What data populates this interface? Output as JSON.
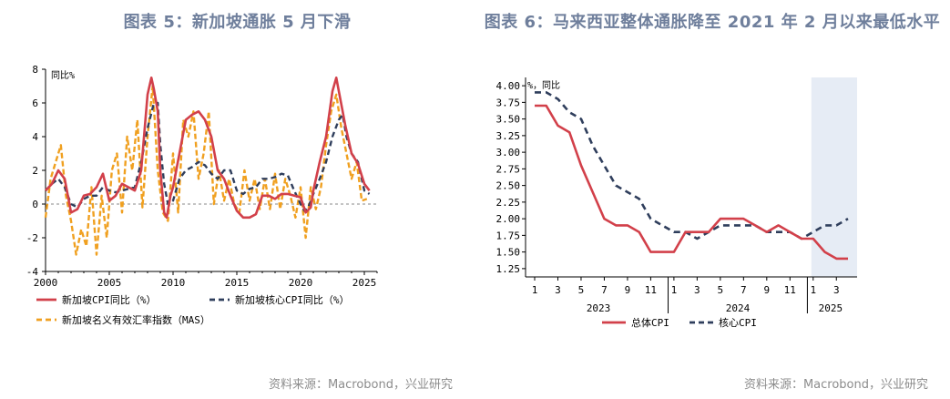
{
  "left": {
    "title": "图表 5：新加坡通胀 5 月下滑",
    "source": "资料来源：Macrobond，兴业研究"
  },
  "right": {
    "title": "图表 6：马来西亚整体通胀降至 2021 年 2 月以来最低水平",
    "source": "资料来源：Macrobond，兴业研究"
  },
  "colors": {
    "red": "#d2404a",
    "navy": "#2f3e5c",
    "orange": "#f0a020",
    "shade": "#e6ecf5"
  },
  "chart_data": [
    {
      "type": "line",
      "unit_label": "同比%",
      "xlim": [
        2000,
        2026
      ],
      "ylim": [
        -4,
        8
      ],
      "x_ticks": [
        "2000",
        "2005",
        "2010",
        "2015",
        "2020",
        "2025"
      ],
      "y_ticks": [
        "8",
        "6",
        "4",
        "2",
        "0",
        "-2",
        "-4"
      ],
      "zero_line": true,
      "legend_placement": "bottom",
      "series": [
        {
          "name": "新加坡CPI同比（%）",
          "color": "#d2404a",
          "style": "solid",
          "x": [
            2000.0,
            2000.5,
            2001.0,
            2001.5,
            2002.0,
            2002.5,
            2003.0,
            2003.5,
            2004.0,
            2004.5,
            2005.0,
            2005.5,
            2006.0,
            2006.5,
            2007.0,
            2007.5,
            2008.0,
            2008.3,
            2008.5,
            2008.8,
            2009.0,
            2009.3,
            2009.5,
            2009.8,
            2010.0,
            2010.5,
            2011.0,
            2011.5,
            2012.0,
            2012.5,
            2013.0,
            2013.5,
            2014.0,
            2014.5,
            2015.0,
            2015.5,
            2016.0,
            2016.5,
            2017.0,
            2017.5,
            2018.0,
            2018.5,
            2019.0,
            2019.5,
            2020.0,
            2020.4,
            2020.8,
            2021.0,
            2021.5,
            2022.0,
            2022.5,
            2022.8,
            2023.0,
            2023.5,
            2024.0,
            2024.5,
            2025.0,
            2025.4
          ],
          "y": [
            0.8,
            1.2,
            2.0,
            1.5,
            -0.5,
            -0.3,
            0.5,
            0.6,
            1.0,
            1.8,
            0.2,
            0.5,
            1.2,
            1.0,
            0.8,
            2.0,
            6.5,
            7.5,
            6.8,
            5.5,
            2.0,
            -0.5,
            -0.8,
            0.5,
            1.0,
            3.0,
            5.0,
            5.3,
            5.5,
            5.0,
            4.0,
            2.0,
            1.5,
            0.5,
            -0.4,
            -0.8,
            -0.8,
            -0.6,
            0.5,
            0.5,
            0.3,
            0.6,
            0.6,
            0.5,
            0.4,
            -0.5,
            -0.2,
            0.8,
            2.5,
            4.0,
            6.7,
            7.5,
            6.7,
            4.7,
            3.0,
            2.4,
            1.2,
            0.8
          ]
        },
        {
          "name": "新加坡核心CPI同比（%）",
          "color": "#2f3e5c",
          "style": "dashed",
          "x": [
            2000.0,
            2000.5,
            2001.0,
            2001.5,
            2002.0,
            2002.5,
            2003.0,
            2003.5,
            2004.0,
            2004.5,
            2005.0,
            2005.5,
            2006.0,
            2006.5,
            2007.0,
            2007.5,
            2008.0,
            2008.5,
            2008.8,
            2009.0,
            2009.3,
            2009.6,
            2010.0,
            2010.5,
            2011.0,
            2011.5,
            2012.0,
            2012.5,
            2013.0,
            2013.5,
            2014.0,
            2014.5,
            2015.0,
            2015.5,
            2016.0,
            2016.5,
            2017.0,
            2017.5,
            2018.0,
            2018.5,
            2019.0,
            2019.5,
            2020.0,
            2020.3,
            2020.6,
            2021.0,
            2021.5,
            2022.0,
            2022.5,
            2023.0,
            2023.3,
            2023.6,
            2024.0,
            2024.5,
            2025.0,
            2025.4
          ],
          "y": [
            0.8,
            1.2,
            1.5,
            1.0,
            0.0,
            -0.2,
            0.3,
            0.5,
            0.5,
            1.0,
            0.8,
            0.7,
            0.8,
            0.9,
            1.0,
            2.5,
            4.5,
            6.0,
            6.0,
            3.5,
            1.2,
            0.0,
            0.2,
            1.5,
            2.0,
            2.2,
            2.5,
            2.3,
            1.8,
            1.5,
            2.0,
            2.0,
            0.8,
            0.6,
            0.9,
            1.0,
            1.5,
            1.5,
            1.6,
            1.8,
            1.7,
            0.8,
            0.0,
            -0.4,
            -0.2,
            0.6,
            1.5,
            2.5,
            4.0,
            5.0,
            5.3,
            4.0,
            3.0,
            2.5,
            0.8,
            0.6
          ]
        },
        {
          "name": "新加坡名义有效汇率指数（MAS）",
          "color": "#f0a020",
          "style": "dashed",
          "x": [
            2000.0,
            2000.4,
            2000.8,
            2001.2,
            2001.6,
            2002.0,
            2002.4,
            2002.8,
            2003.2,
            2003.6,
            2004.0,
            2004.4,
            2004.8,
            2005.2,
            2005.6,
            2006.0,
            2006.4,
            2006.8,
            2007.2,
            2007.6,
            2008.0,
            2008.4,
            2008.8,
            2009.2,
            2009.6,
            2010.0,
            2010.4,
            2010.8,
            2011.2,
            2011.6,
            2012.0,
            2012.4,
            2012.8,
            2013.2,
            2013.6,
            2014.0,
            2014.4,
            2014.8,
            2015.2,
            2015.6,
            2016.0,
            2016.4,
            2016.8,
            2017.2,
            2017.6,
            2018.0,
            2018.4,
            2018.8,
            2019.2,
            2019.6,
            2020.0,
            2020.4,
            2020.8,
            2021.2,
            2021.6,
            2022.0,
            2022.4,
            2022.8,
            2023.2,
            2023.6,
            2024.0,
            2024.4,
            2024.8,
            2025.2
          ],
          "y": [
            -0.8,
            1.5,
            2.5,
            3.5,
            0.5,
            -1.0,
            -3.0,
            -1.5,
            -2.5,
            1.0,
            -3.0,
            0.5,
            -2.0,
            2.0,
            3.0,
            -0.5,
            4.0,
            2.0,
            5.0,
            -0.2,
            4.0,
            7.0,
            2.0,
            -0.5,
            -1.0,
            3.0,
            -0.5,
            5.0,
            4.0,
            5.5,
            1.5,
            3.0,
            5.5,
            0.0,
            2.0,
            0.2,
            1.5,
            0.0,
            -0.5,
            2.0,
            0.2,
            1.5,
            -0.3,
            1.5,
            -0.3,
            1.8,
            -0.3,
            1.5,
            0.5,
            -0.8,
            1.0,
            -2.0,
            1.0,
            -0.3,
            1.0,
            3.5,
            5.5,
            6.5,
            4.5,
            3.0,
            1.5,
            2.5,
            0.2,
            0.3
          ]
        }
      ]
    },
    {
      "type": "line",
      "unit_label": "%，同比",
      "ylim": [
        1.125,
        4.125
      ],
      "y_ticks": [
        "4.00",
        "3.75",
        "3.50",
        "3.25",
        "3.00",
        "2.75",
        "2.50",
        "2.25",
        "2.00",
        "1.75",
        "1.50",
        "1.25"
      ],
      "x_ticks": [
        "1",
        "3",
        "5",
        "7",
        "9",
        "11",
        "1",
        "3",
        "5",
        "7",
        "9",
        "11",
        "1",
        "3"
      ],
      "year_labels": [
        "2023",
        "2024",
        "2025"
      ],
      "shaded_region": "2025",
      "legend_placement": "bottom",
      "series": [
        {
          "name": "总体CPI",
          "color": "#d2404a",
          "style": "solid",
          "x": [
            "2023-01",
            "2023-02",
            "2023-03",
            "2023-04",
            "2023-05",
            "2023-06",
            "2023-07",
            "2023-08",
            "2023-09",
            "2023-10",
            "2023-11",
            "2023-12",
            "2024-01",
            "2024-02",
            "2024-03",
            "2024-04",
            "2024-05",
            "2024-06",
            "2024-07",
            "2024-08",
            "2024-09",
            "2024-10",
            "2024-11",
            "2024-12",
            "2025-01",
            "2025-02",
            "2025-03",
            "2025-04"
          ],
          "y": [
            3.7,
            3.7,
            3.4,
            3.3,
            2.8,
            2.4,
            2.0,
            1.9,
            1.9,
            1.8,
            1.5,
            1.5,
            1.5,
            1.8,
            1.8,
            1.8,
            2.0,
            2.0,
            2.0,
            1.9,
            1.8,
            1.9,
            1.8,
            1.7,
            1.7,
            1.5,
            1.4,
            1.4
          ]
        },
        {
          "name": "核心CPI",
          "color": "#2f3e5c",
          "style": "dashed",
          "x": [
            "2023-01",
            "2023-02",
            "2023-03",
            "2023-04",
            "2023-05",
            "2023-06",
            "2023-07",
            "2023-08",
            "2023-09",
            "2023-10",
            "2023-11",
            "2023-12",
            "2024-01",
            "2024-02",
            "2024-03",
            "2024-04",
            "2024-05",
            "2024-06",
            "2024-07",
            "2024-08",
            "2024-09",
            "2024-10",
            "2024-11",
            "2024-12",
            "2025-01",
            "2025-02",
            "2025-03",
            "2025-04"
          ],
          "y": [
            3.9,
            3.9,
            3.8,
            3.6,
            3.5,
            3.1,
            2.8,
            2.5,
            2.4,
            2.3,
            2.0,
            1.9,
            1.8,
            1.8,
            1.7,
            1.8,
            1.9,
            1.9,
            1.9,
            1.9,
            1.8,
            1.8,
            1.8,
            1.7,
            1.8,
            1.9,
            1.9,
            2.0
          ]
        }
      ]
    }
  ]
}
